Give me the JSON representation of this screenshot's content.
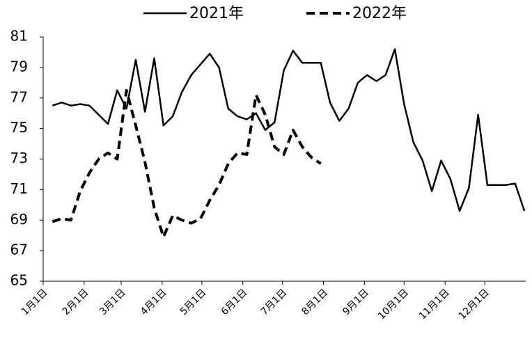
{
  "chart_data": {
    "type": "line",
    "x": [
      7,
      14,
      21,
      28,
      35,
      42,
      49,
      56,
      63,
      70,
      77,
      84,
      91,
      98,
      105,
      112,
      119,
      126,
      133,
      140,
      147,
      154,
      161,
      168,
      175,
      182,
      189,
      196,
      203,
      210,
      217,
      224,
      231,
      238,
      245,
      252,
      259,
      266,
      273,
      280,
      287,
      294,
      301,
      308,
      315,
      322,
      329,
      336,
      343,
      350,
      357,
      364
    ],
    "xlim": [
      0,
      365
    ],
    "xticks": [
      {
        "value": 0,
        "label": "1月1日"
      },
      {
        "value": 31,
        "label": "2月1日"
      },
      {
        "value": 59,
        "label": "3月1日"
      },
      {
        "value": 90,
        "label": "4月1日"
      },
      {
        "value": 120,
        "label": "5月1日"
      },
      {
        "value": 151,
        "label": "6月1日"
      },
      {
        "value": 181,
        "label": "7月1日"
      },
      {
        "value": 212,
        "label": "8月1日"
      },
      {
        "value": 243,
        "label": "9月1日"
      },
      {
        "value": 273,
        "label": "10月1日"
      },
      {
        "value": 304,
        "label": "11月1日"
      },
      {
        "value": 334,
        "label": "12月1日"
      }
    ],
    "ylim": [
      65,
      81
    ],
    "yticks": [
      65,
      67,
      69,
      71,
      73,
      75,
      77,
      79,
      81
    ],
    "grid": false,
    "legend": "top",
    "series": [
      {
        "name": "2021年",
        "color": "#000000",
        "dash": false,
        "values": [
          76.5,
          76.7,
          76.5,
          76.6,
          76.5,
          75.9,
          75.3,
          77.5,
          76.3,
          79.5,
          76.1,
          79.6,
          75.2,
          75.8,
          77.4,
          78.5,
          79.2,
          79.9,
          79.0,
          76.3,
          75.8,
          75.6,
          76.0,
          74.9,
          75.4,
          78.8,
          80.1,
          79.3,
          79.3,
          79.3,
          76.7,
          75.5,
          76.3,
          78.0,
          78.5,
          78.1,
          78.5,
          80.2,
          76.6,
          74.1,
          72.9,
          70.9,
          72.9,
          71.7,
          69.6,
          71.1,
          75.9,
          71.3,
          71.3,
          71.3,
          71.4,
          69.6
        ]
      },
      {
        "name": "2022年",
        "color": "#000000",
        "dash": true,
        "values": [
          68.9,
          69.1,
          69.0,
          70.9,
          72.1,
          73.0,
          73.4,
          73.0,
          77.5,
          75.2,
          72.8,
          69.8,
          67.9,
          69.3,
          69.0,
          68.8,
          69.1,
          70.3,
          71.3,
          72.7,
          73.4,
          73.3,
          77.2,
          75.9,
          73.8,
          73.3,
          74.9,
          73.8,
          73.1,
          72.7,
          null,
          null,
          null,
          null,
          null,
          null,
          null,
          null,
          null,
          null,
          null,
          null,
          null,
          null,
          null,
          null,
          null,
          null,
          null,
          null,
          null,
          null
        ]
      }
    ]
  }
}
